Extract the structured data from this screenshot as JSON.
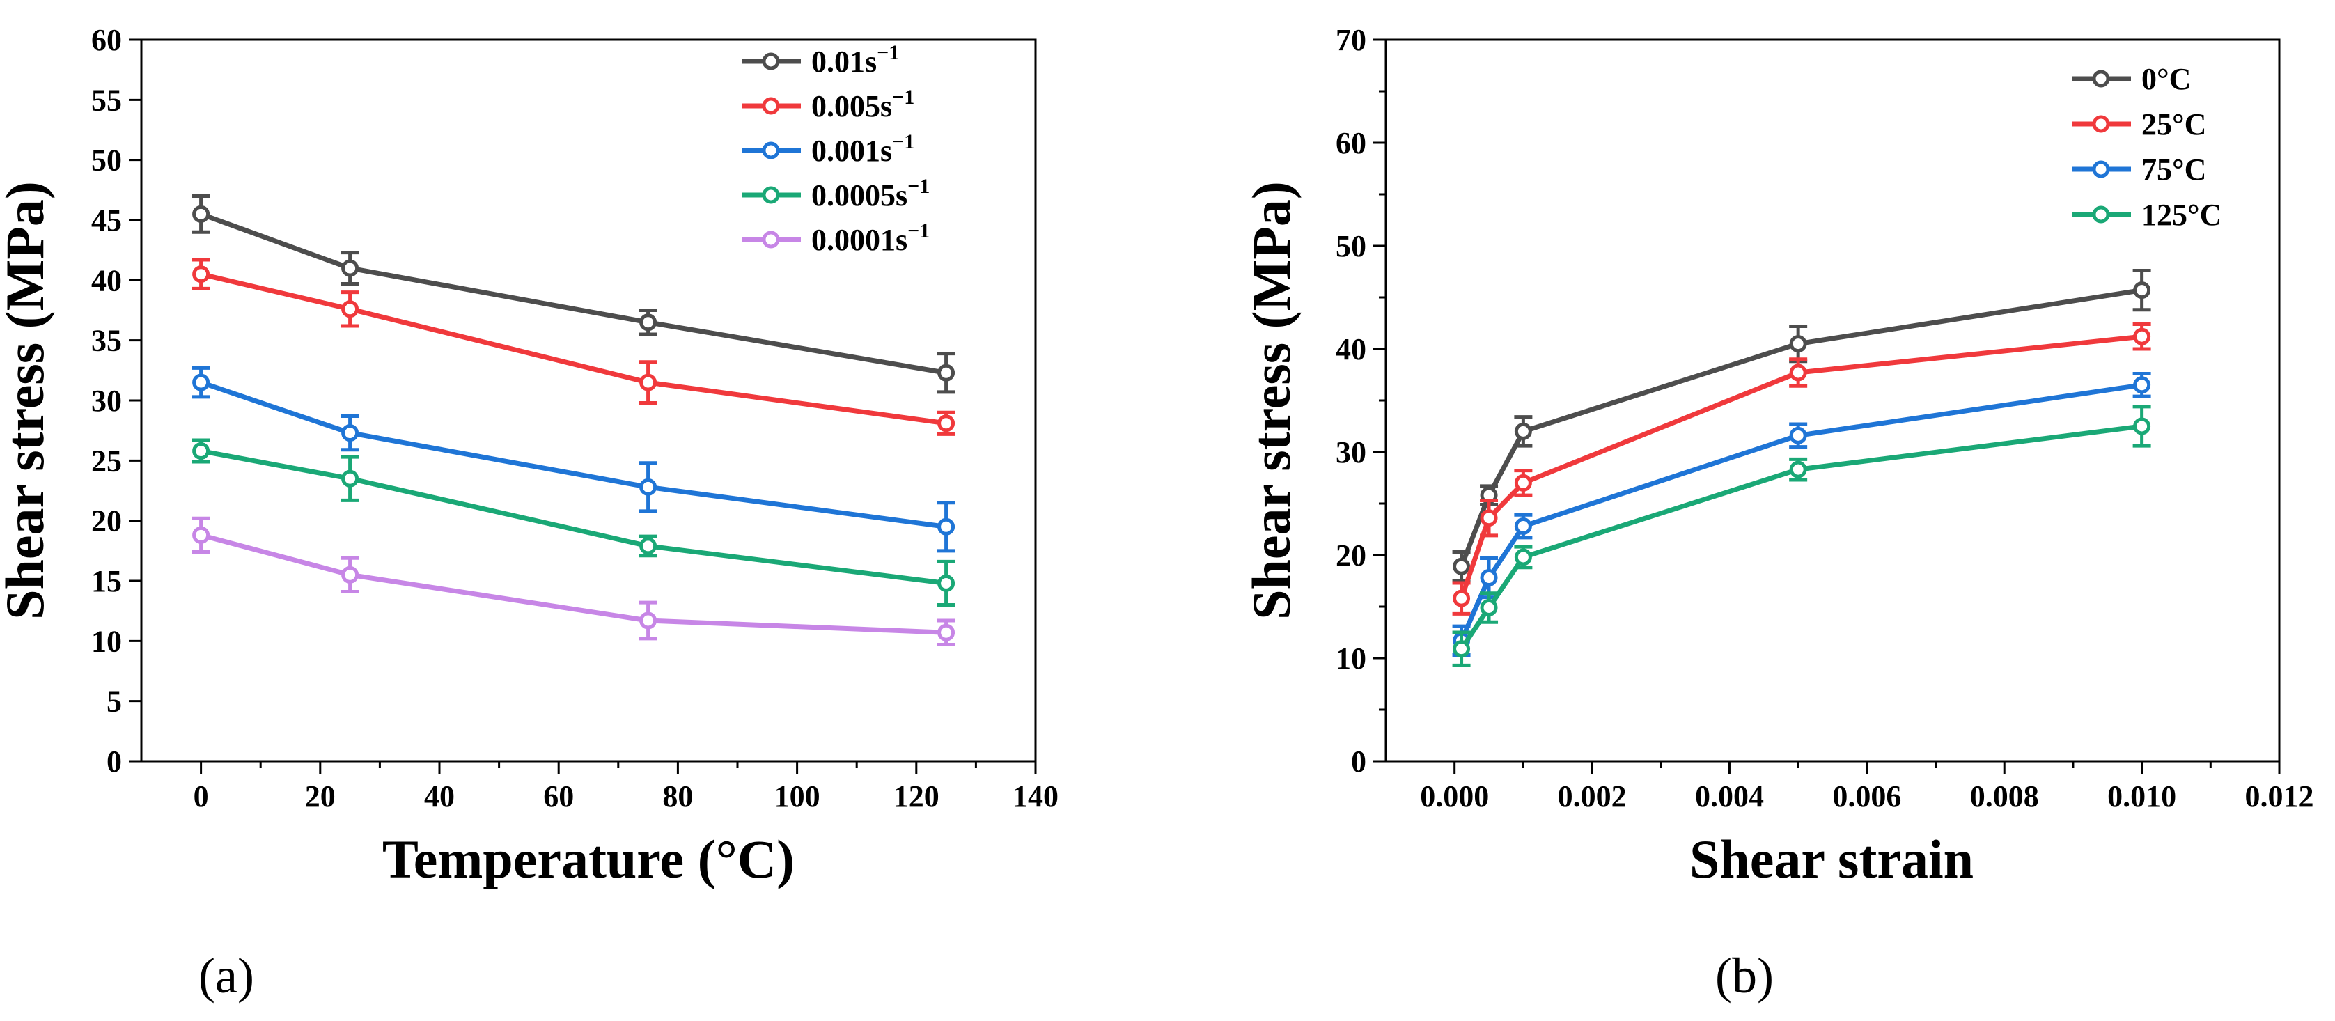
{
  "chart_data": [
    {
      "type": "line",
      "panel_label": "(a)",
      "xlabel": "Temperature (°C)",
      "ylabel": "Shear stress (MPa)",
      "xlim": [
        -10,
        140
      ],
      "ylim": [
        0,
        60
      ],
      "x_ticks": [
        0,
        20,
        40,
        60,
        80,
        100,
        120,
        140
      ],
      "y_ticks": [
        0,
        5,
        10,
        15,
        20,
        25,
        30,
        35,
        40,
        45,
        50,
        55,
        60
      ],
      "x_tick_labels": [
        "0",
        "20",
        "40",
        "60",
        "80",
        "100",
        "120",
        "140"
      ],
      "y_tick_labels": [
        "0",
        "5",
        "10",
        "15",
        "20",
        "25",
        "30",
        "35",
        "40",
        "45",
        "50",
        "55",
        "60"
      ],
      "legend_position": "top-right",
      "grid": false,
      "x": [
        0,
        25,
        75,
        125
      ],
      "series": [
        {
          "name": "0.01s",
          "exp": "−1",
          "color": "#4d4d4d",
          "values": [
            45.5,
            41.0,
            36.5,
            32.3
          ],
          "errors": [
            1.5,
            1.3,
            1.0,
            1.6
          ]
        },
        {
          "name": "0.005s",
          "exp": "−1",
          "color": "#f0393c",
          "values": [
            40.5,
            37.6,
            31.5,
            28.1
          ],
          "errors": [
            1.2,
            1.4,
            1.7,
            0.9
          ]
        },
        {
          "name": "0.001s",
          "exp": "−1",
          "color": "#1f75d6",
          "values": [
            31.5,
            27.3,
            22.8,
            19.5
          ],
          "errors": [
            1.2,
            1.4,
            2.0,
            2.0
          ]
        },
        {
          "name": "0.0005s",
          "exp": "−1",
          "color": "#1aa876",
          "values": [
            25.8,
            23.5,
            17.9,
            14.8
          ],
          "errors": [
            0.9,
            1.8,
            0.8,
            1.8
          ]
        },
        {
          "name": "0.0001s",
          "exp": "−1",
          "color": "#c786e6",
          "values": [
            18.8,
            15.5,
            11.7,
            10.7
          ],
          "errors": [
            1.4,
            1.4,
            1.5,
            1.0
          ]
        }
      ]
    },
    {
      "type": "line",
      "panel_label": "(b)",
      "xlabel": "Shear strain",
      "ylabel": "Shear stress (MPa)",
      "xlim": [
        -0.001,
        0.012
      ],
      "ylim": [
        0,
        70
      ],
      "x_ticks": [
        0,
        0.002,
        0.004,
        0.006,
        0.008,
        0.01,
        0.012
      ],
      "y_ticks": [
        0,
        10,
        20,
        30,
        40,
        50,
        60,
        70
      ],
      "x_tick_labels": [
        "0.000",
        "0.002",
        "0.004",
        "0.006",
        "0.008",
        "0.010",
        "0.012"
      ],
      "y_tick_labels": [
        "0",
        "10",
        "20",
        "30",
        "40",
        "50",
        "60",
        "70"
      ],
      "legend_position": "top-right",
      "grid": false,
      "x": [
        0.0001,
        0.0005,
        0.001,
        0.005,
        0.01
      ],
      "series": [
        {
          "name": "0°C",
          "exp": "",
          "color": "#4d4d4d",
          "values": [
            18.9,
            25.8,
            32.0,
            40.5,
            45.7
          ],
          "errors": [
            1.4,
            0.9,
            1.4,
            1.7,
            1.9
          ]
        },
        {
          "name": "25°C",
          "exp": "",
          "color": "#f0393c",
          "values": [
            15.8,
            23.6,
            27.0,
            37.7,
            41.2
          ],
          "errors": [
            1.5,
            1.7,
            1.2,
            1.3,
            1.2
          ]
        },
        {
          "name": "75°C",
          "exp": "",
          "color": "#1f75d6",
          "values": [
            11.7,
            17.8,
            22.8,
            31.6,
            36.5
          ],
          "errors": [
            1.4,
            1.9,
            1.1,
            1.1,
            1.1
          ]
        },
        {
          "name": "125°C",
          "exp": "",
          "color": "#1aa876",
          "values": [
            10.9,
            14.9,
            19.8,
            28.3,
            32.5
          ],
          "errors": [
            1.6,
            1.4,
            1.0,
            1.0,
            1.9
          ]
        }
      ]
    }
  ]
}
